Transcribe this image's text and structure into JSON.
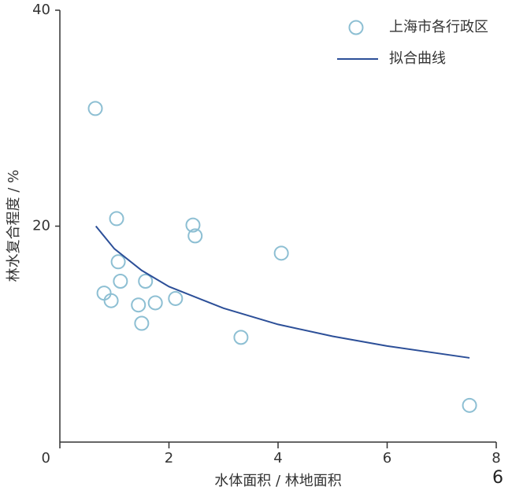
{
  "chart_data": {
    "type": "scatter",
    "x_label": "水体面积 / 林地面积",
    "y_label": "林水复合程度 / %",
    "annotation": "6",
    "xlim": [
      0,
      8
    ],
    "xticks": [
      0,
      2,
      4,
      6,
      8
    ],
    "ylim": [
      0,
      40
    ],
    "yticks": [
      20,
      40
    ],
    "legend": "upper right",
    "series": [
      {
        "name": "上海市各行政区",
        "color": "#8dbfd3",
        "kind": "scatter",
        "x": [
          0.65,
          1.04,
          1.07,
          1.11,
          0.81,
          0.94,
          1.44,
          1.57,
          1.75,
          1.5,
          2.12,
          2.44,
          2.48,
          3.32,
          4.06,
          7.51
        ],
        "values": [
          30.9,
          20.7,
          16.7,
          14.9,
          13.8,
          13.1,
          12.7,
          14.9,
          12.9,
          11.0,
          13.3,
          20.1,
          19.1,
          9.7,
          17.5,
          3.4
        ]
      },
      {
        "name": "拟合曲线",
        "color": "#2c4f98",
        "kind": "line",
        "x": [
          0.66,
          1,
          1.5,
          2,
          3,
          4,
          5,
          6,
          7.51
        ],
        "values": [
          20.0,
          17.9,
          15.9,
          14.4,
          12.4,
          10.9,
          9.8,
          8.9,
          7.8
        ]
      }
    ]
  }
}
